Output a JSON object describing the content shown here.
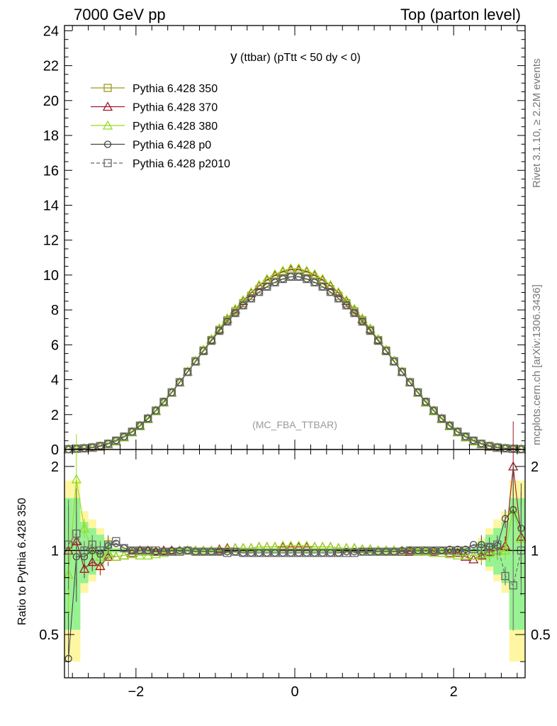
{
  "header": {
    "left": "7000 GeV pp",
    "right": "Top (parton level)"
  },
  "side_labels": {
    "rivet": "Rivet 3.1.10, ≥ 2.2M events",
    "mcplots": "mcplots.cern.ch [arXiv:1306.3436]"
  },
  "chart_data": [
    {
      "type": "line",
      "title_main": "y",
      "title_rest": " (ttbar) (pTtt < 50 dy < 0)",
      "annotation": "(MC_FBA_TTBAR)",
      "xlim": [
        -2.9,
        2.9
      ],
      "ylim": [
        0,
        24.3
      ],
      "xticks": [
        -2,
        0,
        2
      ],
      "yticks": [
        0,
        2,
        4,
        6,
        8,
        10,
        12,
        14,
        16,
        18,
        20,
        22,
        24
      ],
      "grid": false,
      "legend_position": "top-left",
      "x": [
        -2.85,
        -2.75,
        -2.65,
        -2.55,
        -2.45,
        -2.35,
        -2.25,
        -2.15,
        -2.05,
        -1.95,
        -1.85,
        -1.75,
        -1.65,
        -1.55,
        -1.45,
        -1.35,
        -1.25,
        -1.15,
        -1.05,
        -0.95,
        -0.85,
        -0.75,
        -0.65,
        -0.55,
        -0.45,
        -0.35,
        -0.25,
        -0.15,
        -0.05,
        0.05,
        0.15,
        0.25,
        0.35,
        0.45,
        0.55,
        0.65,
        0.75,
        0.85,
        0.95,
        1.05,
        1.15,
        1.25,
        1.35,
        1.45,
        1.55,
        1.65,
        1.75,
        1.85,
        1.95,
        2.05,
        2.15,
        2.25,
        2.35,
        2.45,
        2.55,
        2.65,
        2.75,
        2.85
      ],
      "series": [
        {
          "name": "Pythia 6.428 350",
          "color": "#9a9a1e",
          "marker": "square",
          "dash": "solid",
          "values": [
            0.02,
            0.04,
            0.07,
            0.12,
            0.2,
            0.32,
            0.5,
            0.73,
            1.01,
            1.36,
            1.77,
            2.23,
            2.73,
            3.28,
            3.86,
            4.46,
            5.07,
            5.68,
            6.28,
            6.86,
            7.41,
            7.92,
            8.39,
            8.81,
            9.18,
            9.5,
            9.76,
            9.96,
            10.1,
            10.1,
            9.96,
            9.76,
            9.5,
            9.18,
            8.81,
            8.39,
            7.92,
            7.41,
            6.86,
            6.28,
            5.68,
            5.07,
            4.46,
            3.86,
            3.28,
            2.73,
            2.23,
            1.77,
            1.36,
            1.01,
            0.73,
            0.5,
            0.32,
            0.2,
            0.12,
            0.07,
            0.04,
            0.02
          ]
        },
        {
          "name": "Pythia 6.428 370",
          "color": "#a0142a",
          "marker": "triangle",
          "dash": "solid",
          "values": [
            0.02,
            0.04,
            0.06,
            0.1,
            0.17,
            0.3,
            0.47,
            0.7,
            1.0,
            1.36,
            1.77,
            2.22,
            2.71,
            3.26,
            3.85,
            4.46,
            5.08,
            5.7,
            6.31,
            6.92,
            7.49,
            8.02,
            8.51,
            8.97,
            9.38,
            9.72,
            9.98,
            10.2,
            10.3,
            10.3,
            10.2,
            9.98,
            9.72,
            9.38,
            8.97,
            8.51,
            8.02,
            7.49,
            6.92,
            6.31,
            5.7,
            5.08,
            4.46,
            3.85,
            3.26,
            2.71,
            2.22,
            1.77,
            1.36,
            1.0,
            0.7,
            0.47,
            0.3,
            0.17,
            0.1,
            0.06,
            0.04,
            0.02
          ]
        },
        {
          "name": "Pythia 6.428 380",
          "color": "#93dc1e",
          "marker": "triangle",
          "dash": "solid",
          "values": [
            0.02,
            0.05,
            0.07,
            0.11,
            0.19,
            0.3,
            0.47,
            0.7,
            0.98,
            1.33,
            1.74,
            2.19,
            2.69,
            3.25,
            3.84,
            4.45,
            5.08,
            5.71,
            6.33,
            6.94,
            7.52,
            8.06,
            8.56,
            9.02,
            9.43,
            9.78,
            10.05,
            10.25,
            10.38,
            10.38,
            10.25,
            10.05,
            9.78,
            9.43,
            9.02,
            8.56,
            8.06,
            7.52,
            6.94,
            6.33,
            5.71,
            5.08,
            4.45,
            3.84,
            3.25,
            2.69,
            2.19,
            1.74,
            1.33,
            0.98,
            0.7,
            0.47,
            0.3,
            0.19,
            0.11,
            0.07,
            0.05,
            0.02
          ]
        },
        {
          "name": "Pythia 6.428 p0",
          "color": "#444444",
          "marker": "circle",
          "dash": "solid",
          "values": [
            0.01,
            0.05,
            0.07,
            0.13,
            0.21,
            0.34,
            0.52,
            0.74,
            1.02,
            1.37,
            1.78,
            2.23,
            2.73,
            3.27,
            3.85,
            4.44,
            5.04,
            5.65,
            6.25,
            6.81,
            7.33,
            7.82,
            8.26,
            8.66,
            9.02,
            9.33,
            9.58,
            9.78,
            9.9,
            9.9,
            9.78,
            9.58,
            9.33,
            9.02,
            8.66,
            8.26,
            7.82,
            7.33,
            6.81,
            6.25,
            5.65,
            5.04,
            4.44,
            3.85,
            3.27,
            2.73,
            2.23,
            1.78,
            1.37,
            1.02,
            0.74,
            0.52,
            0.34,
            0.21,
            0.13,
            0.07,
            0.05,
            0.02
          ]
        },
        {
          "name": "Pythia 6.428 p2010",
          "color": "#666666",
          "marker": "square",
          "dash": "dashed",
          "values": [
            0.02,
            0.05,
            0.07,
            0.12,
            0.2,
            0.33,
            0.51,
            0.74,
            1.02,
            1.37,
            1.77,
            2.23,
            2.73,
            3.27,
            3.85,
            4.44,
            5.04,
            5.64,
            6.23,
            6.8,
            7.33,
            7.82,
            8.26,
            8.66,
            9.03,
            9.33,
            9.58,
            9.77,
            9.9,
            9.9,
            9.77,
            9.58,
            9.33,
            9.03,
            8.66,
            8.26,
            7.82,
            7.33,
            6.8,
            6.23,
            5.64,
            5.04,
            4.44,
            3.85,
            3.27,
            2.73,
            2.23,
            1.77,
            1.37,
            1.02,
            0.74,
            0.51,
            0.33,
            0.2,
            0.12,
            0.07,
            0.04,
            0.02
          ]
        }
      ]
    },
    {
      "type": "line",
      "ylabel": "Ratio to Pythia 6.428 350",
      "xlim": [
        -2.9,
        2.9
      ],
      "ylim": [
        0.35,
        2.3
      ],
      "xticks": [
        -2,
        0,
        2
      ],
      "yticks": [
        0.5,
        1,
        2
      ],
      "reference_line": 1,
      "grid": false,
      "x": [
        -2.85,
        -2.75,
        -2.65,
        -2.55,
        -2.45,
        -2.35,
        -2.25,
        -2.15,
        -2.05,
        -1.95,
        -1.85,
        -1.75,
        -1.65,
        -1.55,
        -1.45,
        -1.35,
        -1.25,
        -1.15,
        -1.05,
        -0.95,
        -0.85,
        -0.75,
        -0.65,
        -0.55,
        -0.45,
        -0.35,
        -0.25,
        -0.15,
        -0.05,
        0.05,
        0.15,
        0.25,
        0.35,
        0.45,
        0.55,
        0.65,
        0.75,
        0.85,
        0.95,
        1.05,
        1.15,
        1.25,
        1.35,
        1.45,
        1.55,
        1.65,
        1.75,
        1.85,
        1.95,
        2.05,
        2.15,
        2.25,
        2.35,
        2.45,
        2.55,
        2.65,
        2.75,
        2.85
      ],
      "series": [
        {
          "name": "Pythia 6.428 350",
          "values": [
            1,
            1,
            1,
            1,
            1,
            1,
            1,
            1,
            1,
            1,
            1,
            1,
            1,
            1,
            1,
            1,
            1,
            1,
            1,
            1,
            1,
            1,
            1,
            1,
            1,
            1,
            1,
            1,
            1,
            1,
            1,
            1,
            1,
            1,
            1,
            1,
            1,
            1,
            1,
            1,
            1,
            1,
            1,
            1,
            1,
            1,
            1,
            1,
            1,
            1,
            1,
            1,
            1,
            1,
            1,
            1,
            1,
            1
          ]
        },
        {
          "name": "Pythia 6.428 370",
          "values": [
            1.0,
            1.08,
            0.86,
            0.91,
            0.88,
            0.95,
            0.95,
            0.96,
            0.98,
            1.0,
            1.0,
            0.99,
            1.0,
            1.0,
            1.0,
            1.0,
            1.0,
            1.0,
            1.0,
            1.01,
            1.02,
            1.02,
            1.02,
            1.02,
            1.03,
            1.03,
            1.03,
            1.03,
            1.03,
            1.03,
            1.03,
            1.03,
            1.03,
            1.03,
            1.02,
            1.02,
            1.02,
            1.01,
            1.01,
            1.0,
            1.0,
            1.0,
            0.99,
            0.99,
            0.99,
            0.99,
            0.99,
            0.98,
            0.98,
            0.98,
            0.95,
            0.93,
            0.96,
            0.99,
            1.0,
            1.04,
            2.0,
            1.12
          ]
        },
        {
          "name": "Pythia 6.428 380",
          "values": [
            0.82,
            1.8,
            1.2,
            1.0,
            0.95,
            0.98,
            0.95,
            0.96,
            0.97,
            0.96,
            0.96,
            0.97,
            0.98,
            0.99,
            1.0,
            1.0,
            1.0,
            1.0,
            1.0,
            1.0,
            1.01,
            1.02,
            1.02,
            1.02,
            1.03,
            1.03,
            1.03,
            1.04,
            1.04,
            1.04,
            1.04,
            1.03,
            1.03,
            1.03,
            1.02,
            1.02,
            1.02,
            1.01,
            1.01,
            1.0,
            1.0,
            1.0,
            1.0,
            1.0,
            0.99,
            0.99,
            0.98,
            0.98,
            0.97,
            0.96,
            0.96,
            0.96,
            0.97,
            0.98,
            1.0,
            1.0,
            1.4,
            1.1
          ]
        },
        {
          "name": "Pythia 6.428 p0",
          "color": "#444444",
          "values": [
            0.41,
            0.95,
            0.95,
            1.0,
            0.97,
            1.04,
            1.06,
            1.02,
            1.0,
            1.0,
            1.0,
            0.99,
            0.99,
            1.0,
            1.0,
            1.0,
            0.99,
            0.99,
            0.99,
            0.99,
            0.99,
            0.99,
            0.98,
            0.98,
            0.98,
            0.98,
            0.98,
            0.98,
            0.98,
            0.98,
            0.98,
            0.98,
            0.98,
            0.98,
            0.98,
            0.99,
            0.99,
            0.99,
            0.99,
            0.99,
            0.99,
            0.99,
            1.0,
            1.0,
            1.0,
            1.0,
            1.0,
            1.0,
            1.01,
            1.01,
            1.01,
            1.05,
            1.05,
            1.03,
            1.04,
            1.3,
            1.4,
            1.2
          ]
        },
        {
          "name": "Pythia 6.428 p2010",
          "color": "#666666",
          "values": [
            1.05,
            1.15,
            1.0,
            1.05,
            1.0,
            1.05,
            1.08,
            1.02,
            1.0,
            1.0,
            1.0,
            1.0,
            0.99,
            0.99,
            0.99,
            1.0,
            0.99,
            0.99,
            0.99,
            0.99,
            0.98,
            0.99,
            0.98,
            0.98,
            0.98,
            0.98,
            0.98,
            0.98,
            0.98,
            0.98,
            0.98,
            0.98,
            0.98,
            0.98,
            0.98,
            0.98,
            0.98,
            0.99,
            0.99,
            0.99,
            0.99,
            0.99,
            0.99,
            1.0,
            1.0,
            1.0,
            1.0,
            1.0,
            1.0,
            1.0,
            1.0,
            1.01,
            1.0,
            1.03,
            1.05,
            0.81,
            0.75,
            1.0
          ]
        }
      ]
    }
  ]
}
